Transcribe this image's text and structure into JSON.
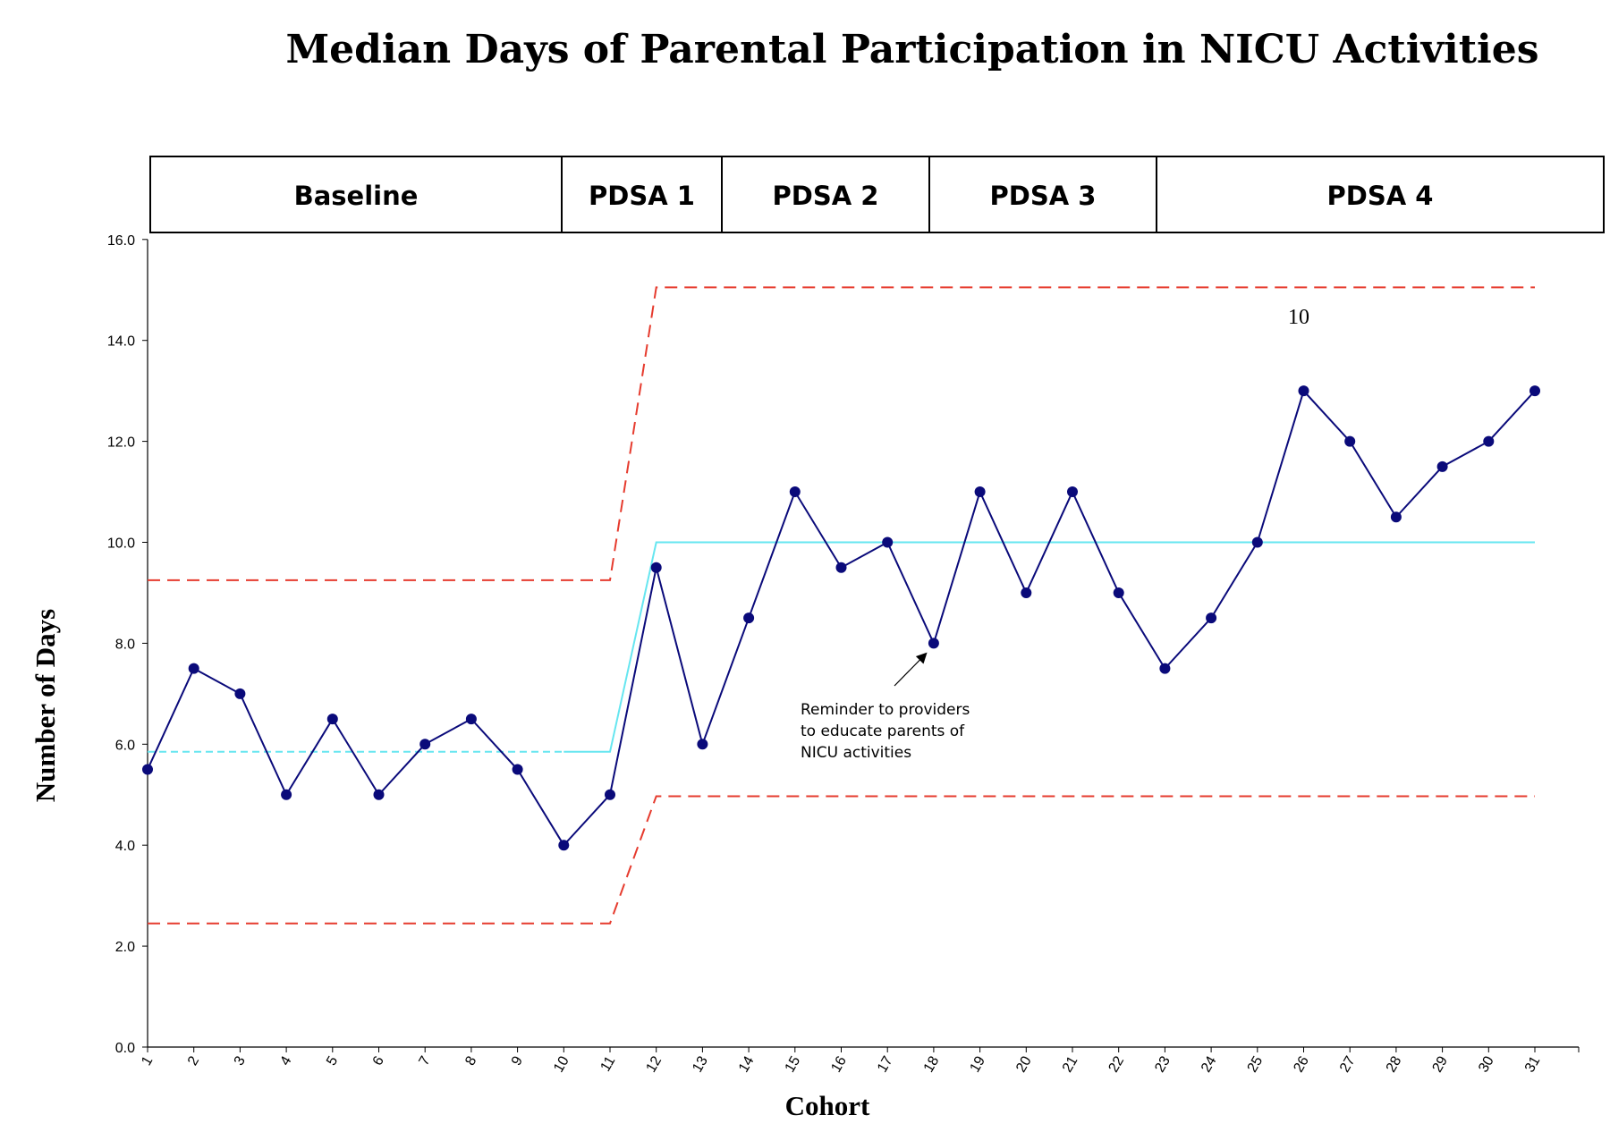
{
  "chart_data": {
    "type": "line",
    "title": "Median Days of Parental Participation in NICU Activities",
    "xlabel": "Cohort",
    "ylabel": "Number of Days",
    "ylim": [
      0,
      16
    ],
    "y_ticks": [
      "0.0",
      "2.0",
      "4.0",
      "6.0",
      "8.0",
      "10.0",
      "12.0",
      "14.0",
      "16.0"
    ],
    "x": [
      1,
      2,
      3,
      4,
      5,
      6,
      7,
      8,
      9,
      10,
      11,
      12,
      13,
      14,
      15,
      16,
      17,
      18,
      19,
      20,
      21,
      22,
      23,
      24,
      25,
      26,
      27,
      28,
      29,
      30,
      31
    ],
    "series": [
      {
        "values": [
          5.5,
          7.5,
          7.0,
          5.0,
          6.5,
          5.0,
          6.0,
          6.5,
          5.5,
          4.0,
          5.0,
          9.5,
          6.0,
          8.5,
          11.0,
          9.5,
          10.0,
          8.0,
          11.0,
          9.0,
          11.0,
          9.0,
          7.5,
          8.5,
          10.0,
          13.0,
          12.0,
          10.5,
          11.5,
          12.0,
          13.0
        ],
        "color": "#0a0a7a"
      }
    ],
    "center_line": {
      "baseline": 5.85,
      "improved": 10.0,
      "color": "#66e6f0"
    },
    "control_limits": {
      "upper": {
        "baseline": 9.25,
        "improved": 15.05
      },
      "lower": {
        "baseline": 2.45,
        "improved": 4.97
      },
      "color": "#e63b2e"
    },
    "phases": [
      {
        "label": "Baseline"
      },
      {
        "label": "PDSA 1"
      },
      {
        "label": "PDSA 2"
      },
      {
        "label": "PDSA 3"
      },
      {
        "label": "PDSA 4"
      }
    ],
    "annotations": [
      {
        "lines": [
          "Reminder to providers",
          "to educate parents of",
          "NICU activities"
        ],
        "target_cohort": 18
      },
      {
        "text": "10"
      }
    ],
    "grid": false
  }
}
